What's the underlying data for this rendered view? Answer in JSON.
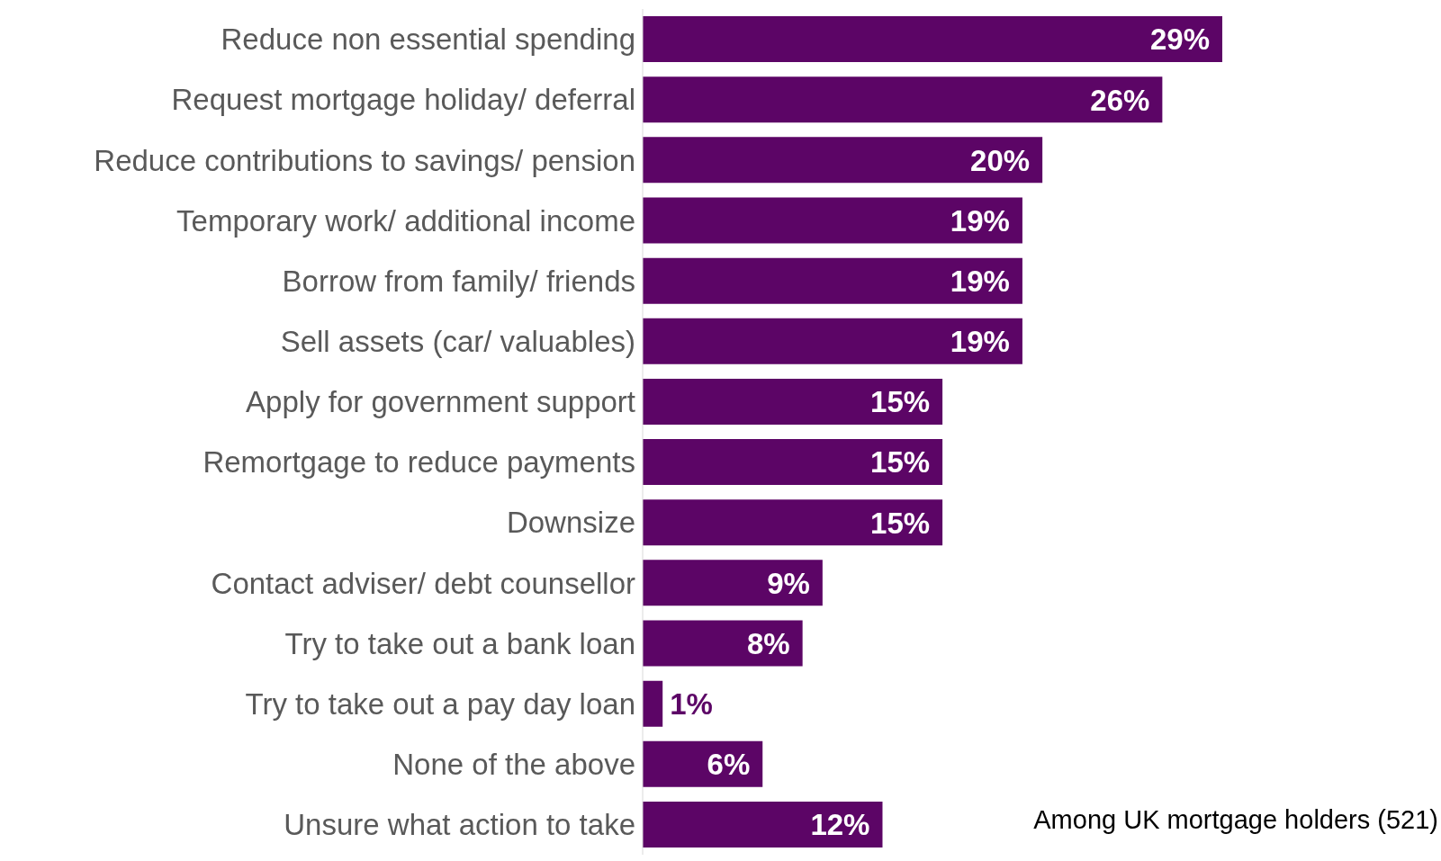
{
  "chart_data": {
    "type": "bar",
    "orientation": "horizontal",
    "categories": [
      "Reduce non essential spending",
      "Request mortgage holiday/ deferral",
      "Reduce contributions to savings/ pension",
      "Temporary work/ additional income",
      "Borrow from family/ friends",
      "Sell assets (car/ valuables)",
      "Apply for government support",
      "Remortgage to reduce payments",
      "Downsize",
      "Contact adviser/ debt counsellor",
      "Try to take out a bank loan",
      "Try to take out a pay day loan",
      "None of the above",
      "Unsure what action to take"
    ],
    "values": [
      29,
      26,
      20,
      19,
      19,
      19,
      15,
      15,
      15,
      9,
      8,
      1,
      6,
      12
    ],
    "value_labels": [
      "29%",
      "26%",
      "20%",
      "19%",
      "19%",
      "19%",
      "15%",
      "15%",
      "15%",
      "9%",
      "8%",
      "1%",
      "6%",
      "12%"
    ],
    "color": "#5c0566",
    "annotations": [
      "Among UK mortgage holders (521)"
    ]
  }
}
